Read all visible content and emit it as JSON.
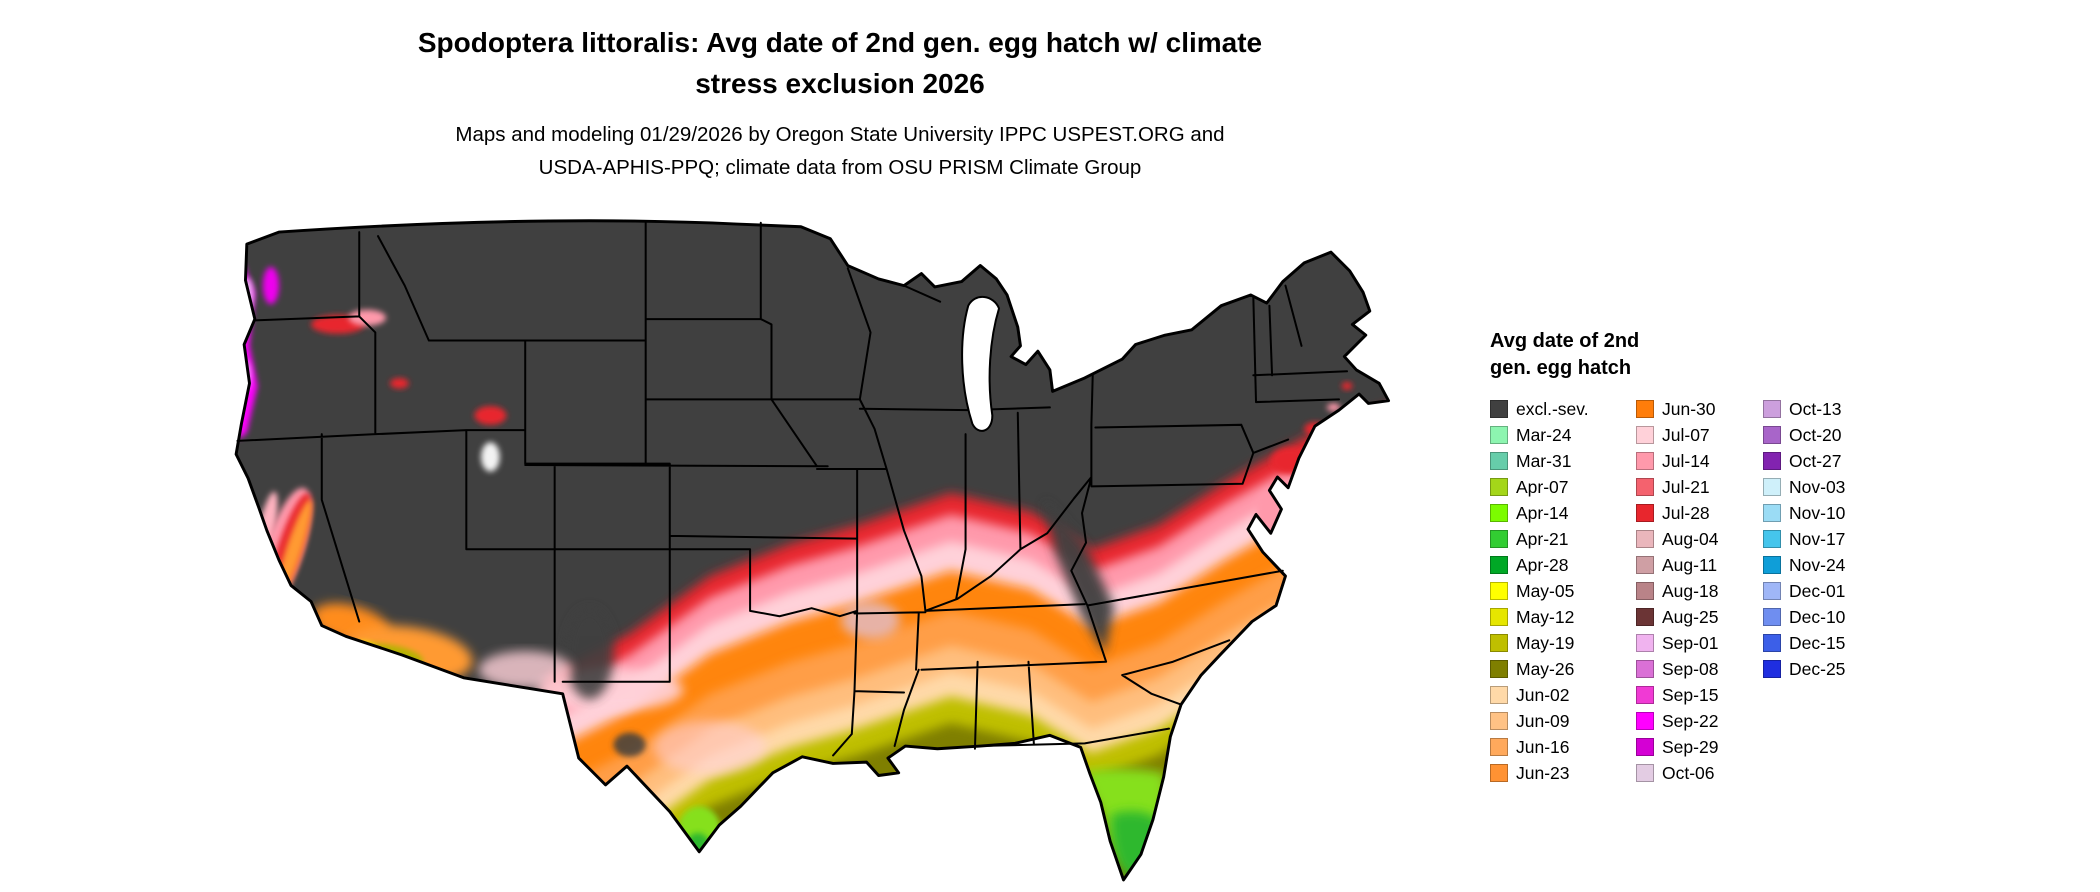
{
  "header": {
    "title_line1": "Spodoptera littoralis: Avg date of 2nd gen. egg hatch w/ climate",
    "title_line2": "stress exclusion 2026",
    "subtitle_line1": "Maps and modeling 01/29/2026 by Oregon State University IPPC USPEST.ORG and",
    "subtitle_line2": "USDA-APHIS-PPQ; climate data from OSU PRISM Climate Group"
  },
  "legend": {
    "title_line1": "Avg date of 2nd",
    "title_line2": "gen. egg hatch",
    "columns": [
      {
        "items": [
          {
            "label": "excl.-sev.",
            "color": "#404040"
          },
          {
            "label": "Mar-24",
            "color": "#8df5b0"
          },
          {
            "label": "Mar-31",
            "color": "#66cdaa"
          },
          {
            "label": "Apr-07",
            "color": "#a4d619"
          },
          {
            "label": "Apr-14",
            "color": "#7cfc00"
          },
          {
            "label": "Apr-21",
            "color": "#32cd32"
          },
          {
            "label": "Apr-28",
            "color": "#00a826"
          },
          {
            "label": "May-05",
            "color": "#ffff00"
          },
          {
            "label": "May-12",
            "color": "#e6e600"
          },
          {
            "label": "May-19",
            "color": "#bfbf00"
          },
          {
            "label": "May-26",
            "color": "#7f7f00"
          },
          {
            "label": "Jun-02",
            "color": "#ffd9a8"
          },
          {
            "label": "Jun-09",
            "color": "#ffc285"
          },
          {
            "label": "Jun-16",
            "color": "#ffa95c"
          },
          {
            "label": "Jun-23",
            "color": "#ff9233"
          }
        ]
      },
      {
        "items": [
          {
            "label": "Jun-30",
            "color": "#ff7d0a"
          },
          {
            "label": "Jul-07",
            "color": "#ffd1d9"
          },
          {
            "label": "Jul-14",
            "color": "#ff99ab"
          },
          {
            "label": "Jul-21",
            "color": "#f4626e"
          },
          {
            "label": "Jul-28",
            "color": "#e8262d"
          },
          {
            "label": "Aug-04",
            "color": "#eab6bc"
          },
          {
            "label": "Aug-11",
            "color": "#cf9fa4"
          },
          {
            "label": "Aug-18",
            "color": "#b98388"
          },
          {
            "label": "Aug-25",
            "color": "#6b3435"
          },
          {
            "label": "Sep-01",
            "color": "#f0b3ef"
          },
          {
            "label": "Sep-08",
            "color": "#da70d6"
          },
          {
            "label": "Sep-15",
            "color": "#f03ad4"
          },
          {
            "label": "Sep-22",
            "color": "#ff00ff"
          },
          {
            "label": "Sep-29",
            "color": "#d400d4"
          },
          {
            "label": "Oct-06",
            "color": "#e3cce3"
          }
        ]
      },
      {
        "items": [
          {
            "label": "Oct-13",
            "color": "#cc9fdd"
          },
          {
            "label": "Oct-20",
            "color": "#a865c9"
          },
          {
            "label": "Oct-27",
            "color": "#8223b0"
          },
          {
            "label": "Nov-03",
            "color": "#cff0fa"
          },
          {
            "label": "Nov-10",
            "color": "#9bdcf5"
          },
          {
            "label": "Nov-17",
            "color": "#45c5ec"
          },
          {
            "label": "Nov-24",
            "color": "#0f9ed8"
          },
          {
            "label": "Dec-01",
            "color": "#9fb6f7"
          },
          {
            "label": "Dec-10",
            "color": "#6f8ef0"
          },
          {
            "label": "Dec-15",
            "color": "#3c5fe8"
          },
          {
            "label": "Dec-25",
            "color": "#1f2ee0"
          }
        ]
      }
    ]
  },
  "map": {
    "excluded_fill": "#404040",
    "state_border_color": "#000000",
    "water_color": "#ffffff"
  }
}
